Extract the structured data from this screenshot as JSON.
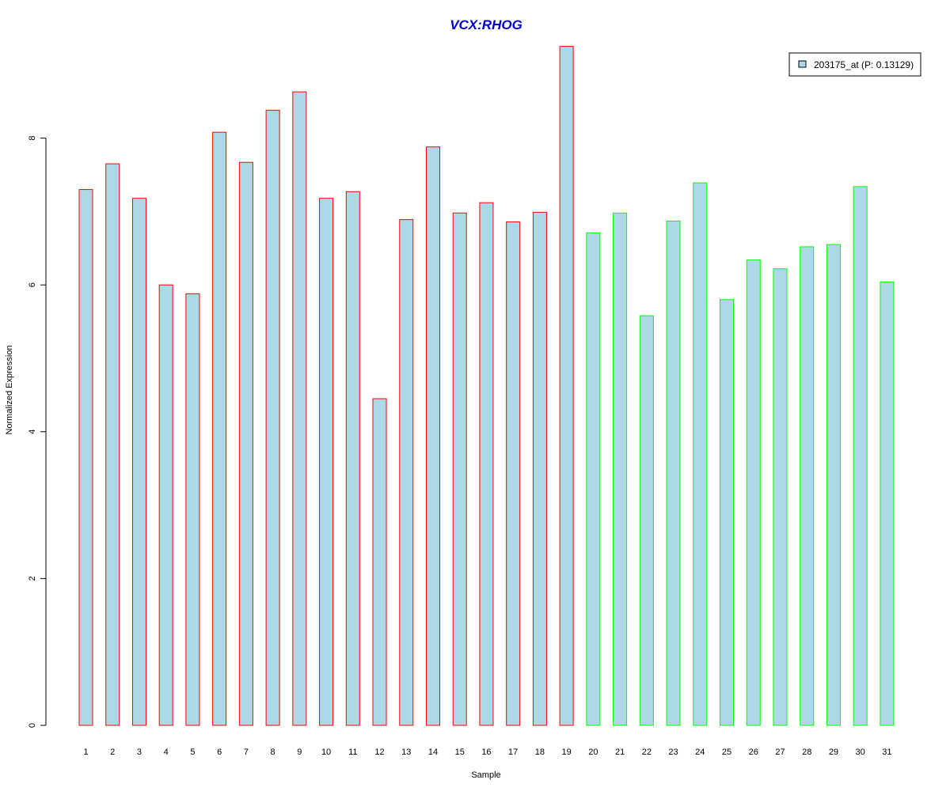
{
  "chart_data": {
    "type": "bar",
    "title": "VCX:RHOG",
    "xlabel": "Sample",
    "ylabel": "Normalized Expression",
    "ylim": [
      0,
      9.3
    ],
    "yticks": [
      0,
      2,
      4,
      6,
      8
    ],
    "grid": false,
    "legend": {
      "position": "top-right",
      "label": "203175_at (P: 0.13129)",
      "fill": "#add8e6"
    },
    "categories": [
      "1",
      "2",
      "3",
      "4",
      "5",
      "6",
      "7",
      "8",
      "9",
      "10",
      "11",
      "12",
      "13",
      "14",
      "15",
      "16",
      "17",
      "18",
      "19",
      "20",
      "21",
      "22",
      "23",
      "24",
      "25",
      "26",
      "27",
      "28",
      "29",
      "30",
      "31"
    ],
    "values": [
      7.3,
      7.65,
      7.18,
      6.0,
      5.88,
      8.08,
      7.67,
      8.38,
      8.63,
      7.18,
      7.27,
      4.45,
      6.89,
      7.88,
      6.98,
      7.12,
      6.86,
      6.99,
      9.25,
      6.71,
      6.98,
      5.58,
      6.87,
      7.39,
      5.8,
      6.34,
      6.22,
      6.52,
      6.55,
      7.34,
      6.04
    ],
    "groups": [
      {
        "border": "#ff0000",
        "from": 1,
        "to": 19
      },
      {
        "border": "#00ff00",
        "from": 20,
        "to": 31
      }
    ],
    "colors": {
      "bar_fill": "#add8e6",
      "title": "#0000cc",
      "axis": "#000000"
    }
  }
}
